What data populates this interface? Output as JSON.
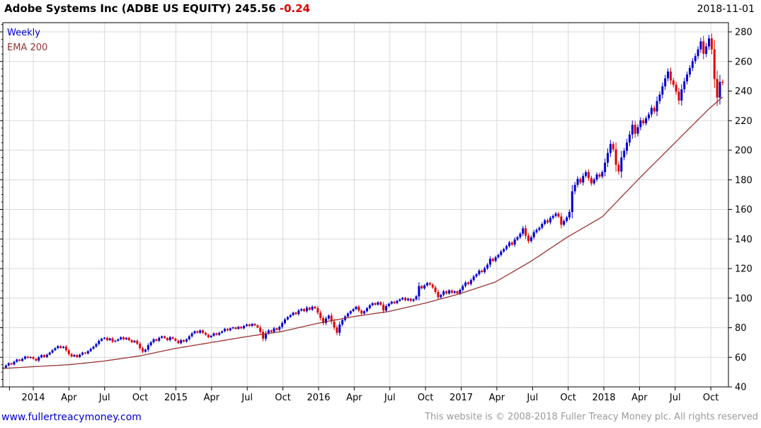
{
  "header": {
    "title": "Adobe Systems Inc (ADBE US EQUITY) 245.56",
    "change": "-0.24",
    "date": "2018-11-01"
  },
  "legend": {
    "series1": "Weekly",
    "series2": "EMA 200"
  },
  "footer": {
    "site": "www.fullertreacymoney.com",
    "copyright": "This website is © 2008-2018 Fuller Treacy Money plc. All rights reserved"
  },
  "colors": {
    "up": "#0000d0",
    "down": "#e00000",
    "ema": "#993333",
    "grid": "#d9d9d9",
    "axis": "#000000",
    "label": "#000000",
    "change_neg": "#dd0000",
    "legend1": "#0000cc",
    "legend2": "#993333",
    "link": "#0000cc",
    "copyright": "#9a9a9a"
  },
  "chart_data": {
    "type": "candlestick",
    "title": "Adobe Systems Inc (ADBE US EQUITY)",
    "interval": "Weekly",
    "overlay": "EMA 200",
    "last_price": 245.56,
    "change": -0.24,
    "as_of": "2018-11-01",
    "ylim": [
      40,
      286
    ],
    "y_ticks": [
      40,
      60,
      80,
      100,
      120,
      140,
      160,
      180,
      200,
      220,
      240,
      260,
      280
    ],
    "x_ticks": [
      {
        "label": "",
        "year": 2013,
        "month": 11
      },
      {
        "label": "2014",
        "year": 2014,
        "month": 1
      },
      {
        "label": "Apr",
        "year": 2014,
        "month": 4
      },
      {
        "label": "Jul",
        "year": 2014,
        "month": 7
      },
      {
        "label": "Oct",
        "year": 2014,
        "month": 10
      },
      {
        "label": "2015",
        "year": 2015,
        "month": 1
      },
      {
        "label": "Apr",
        "year": 2015,
        "month": 4
      },
      {
        "label": "Jul",
        "year": 2015,
        "month": 7
      },
      {
        "label": "Oct",
        "year": 2015,
        "month": 10
      },
      {
        "label": "2016",
        "year": 2016,
        "month": 1
      },
      {
        "label": "Apr",
        "year": 2016,
        "month": 4
      },
      {
        "label": "Jul",
        "year": 2016,
        "month": 7
      },
      {
        "label": "Oct",
        "year": 2016,
        "month": 10
      },
      {
        "label": "2017",
        "year": 2017,
        "month": 1
      },
      {
        "label": "Apr",
        "year": 2017,
        "month": 4
      },
      {
        "label": "Jul",
        "year": 2017,
        "month": 7
      },
      {
        "label": "Oct",
        "year": 2017,
        "month": 10
      },
      {
        "label": "2018",
        "year": 2018,
        "month": 1
      },
      {
        "label": "Apr",
        "year": 2018,
        "month": 4
      },
      {
        "label": "Jul",
        "year": 2018,
        "month": 7
      },
      {
        "label": "Oct",
        "year": 2018,
        "month": 10
      }
    ],
    "start_week": "2013-10-21",
    "weeks_before_2014": 11,
    "weekly_closes": [
      53.0,
      54.5,
      56.0,
      55.2,
      57.0,
      58.5,
      57.6,
      59.0,
      60.5,
      59.6,
      60.2,
      59.0,
      57.8,
      60.0,
      61.5,
      60.2,
      61.8,
      63.2,
      64.8,
      66.2,
      67.6,
      66.4,
      67.2,
      64.8,
      62.2,
      60.6,
      61.6,
      60.2,
      61.8,
      63.2,
      62.6,
      64.2,
      65.8,
      67.2,
      69.0,
      71.2,
      72.6,
      73.2,
      71.6,
      72.8,
      70.6,
      71.2,
      72.2,
      73.6,
      72.2,
      73.2,
      71.6,
      70.2,
      71.2,
      69.2,
      66.2,
      63.8,
      65.2,
      68.2,
      70.2,
      72.2,
      71.2,
      73.2,
      74.2,
      73.0,
      71.6,
      73.6,
      72.6,
      71.2,
      69.6,
      71.6,
      70.6,
      72.2,
      74.2,
      76.2,
      77.6,
      76.6,
      78.2,
      76.6,
      75.2,
      73.6,
      74.6,
      76.2,
      75.2,
      76.6,
      77.6,
      79.2,
      78.2,
      79.6,
      80.2,
      79.2,
      80.6,
      79.6,
      81.2,
      82.2,
      81.2,
      82.6,
      81.6,
      80.2,
      77.2,
      72.6,
      76.2,
      78.2,
      77.2,
      79.6,
      78.6,
      80.6,
      83.2,
      85.6,
      87.2,
      88.6,
      90.2,
      89.2,
      91.6,
      92.6,
      91.2,
      93.6,
      92.2,
      94.2,
      93.2,
      90.2,
      86.6,
      83.2,
      86.2,
      88.2,
      84.2,
      80.2,
      76.6,
      82.2,
      85.2,
      87.6,
      89.6,
      91.2,
      92.6,
      94.2,
      91.6,
      89.6,
      91.2,
      93.2,
      95.2,
      96.6,
      95.6,
      97.2,
      95.6,
      91.6,
      94.6,
      96.2,
      97.6,
      96.6,
      98.2,
      99.2,
      100.2,
      98.6,
      99.6,
      98.2,
      99.2,
      101.2,
      108.2,
      106.6,
      108.6,
      110.2,
      109.2,
      107.2,
      104.2,
      100.6,
      102.2,
      104.6,
      103.2,
      105.2,
      103.6,
      104.6,
      103.2,
      105.6,
      108.2,
      110.6,
      109.6,
      112.2,
      114.6,
      116.2,
      118.6,
      117.6,
      120.2,
      122.6,
      126.6,
      125.2,
      127.6,
      129.2,
      131.6,
      133.2,
      135.2,
      137.6,
      136.2,
      139.6,
      141.2,
      143.6,
      147.2,
      142.2,
      138.6,
      141.2,
      144.6,
      146.2,
      147.6,
      150.2,
      152.6,
      151.2,
      154.2,
      155.6,
      157.2,
      155.2,
      149.6,
      152.2,
      154.6,
      158.2,
      172.2,
      176.6,
      180.6,
      178.2,
      182.6,
      185.2,
      181.2,
      177.6,
      180.2,
      183.6,
      182.2,
      185.2,
      191.6,
      198.2,
      204.2,
      200.6,
      190.2,
      185.6,
      195.2,
      199.6,
      205.2,
      210.6,
      217.2,
      211.2,
      215.6,
      220.2,
      218.2,
      221.6,
      224.2,
      228.6,
      226.2,
      233.2,
      237.6,
      243.2,
      248.6,
      253.2,
      247.2,
      244.2,
      239.6,
      233.6,
      241.2,
      246.6,
      251.2,
      255.6,
      260.2,
      263.6,
      268.2,
      273.6,
      265.2,
      270.2,
      275.6,
      268.2,
      248.2,
      235.6,
      246.2,
      245.56
    ],
    "ema_anchors": [
      [
        0,
        52.5
      ],
      [
        24,
        55
      ],
      [
        37,
        57.5
      ],
      [
        50,
        61
      ],
      [
        63,
        66
      ],
      [
        76,
        70
      ],
      [
        89,
        74
      ],
      [
        102,
        77.5
      ],
      [
        115,
        83
      ],
      [
        128,
        87.5
      ],
      [
        141,
        91
      ],
      [
        154,
        96.5
      ],
      [
        167,
        103
      ],
      [
        180,
        111
      ],
      [
        193,
        125
      ],
      [
        206,
        141
      ],
      [
        219,
        155
      ],
      [
        232,
        180
      ],
      [
        245,
        204
      ],
      [
        258,
        228
      ],
      [
        263,
        236
      ]
    ]
  }
}
